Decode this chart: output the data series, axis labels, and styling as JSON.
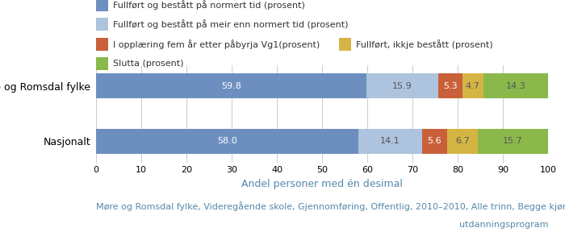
{
  "categories": [
    "Møre og Romsdal fylke",
    "Nasjonalt"
  ],
  "series": [
    {
      "label": "Fullført og bestått på normert tid (prosent)",
      "values": [
        59.8,
        58.0
      ],
      "color": "#6d8fc0"
    },
    {
      "label": "Fullført og bestått på meir enn normert tid (prosent)",
      "values": [
        15.9,
        14.1
      ],
      "color": "#adc3de"
    },
    {
      "label": "I opplæring fem år etter påbyrja Vg1(prosent)",
      "values": [
        5.3,
        5.6
      ],
      "color": "#c8613a"
    },
    {
      "label": "Fullført, ikkje bestått (prosent)",
      "values": [
        4.7,
        6.7
      ],
      "color": "#d4b544"
    },
    {
      "label": "Slutta (prosent)",
      "values": [
        14.3,
        15.7
      ],
      "color": "#8ab84a"
    }
  ],
  "xlabel": "Andel personer med én desimal",
  "xlim": [
    0,
    100
  ],
  "xticks": [
    0,
    10,
    20,
    30,
    40,
    50,
    60,
    70,
    80,
    90,
    100
  ],
  "footnote_line1": "Møre og Romsdal fylke, Videregående skole, Gjennomføring, Offentlig, 2010–2010, Alle trinn, Begge kjønn, Alle",
  "footnote_line2": "utdanningsprogram",
  "background_color": "#ffffff",
  "bar_height": 0.45,
  "bar_label_fontsize": 8,
  "legend_fontsize": 8,
  "axis_label_fontsize": 9,
  "footnote_fontsize": 8,
  "category_fontsize": 9,
  "white_text_colors": [
    "#6d8fc0",
    "#c8613a"
  ],
  "dark_text_color": "#555555",
  "xlabel_color": "#5588aa",
  "footnote_color": "#5588aa"
}
